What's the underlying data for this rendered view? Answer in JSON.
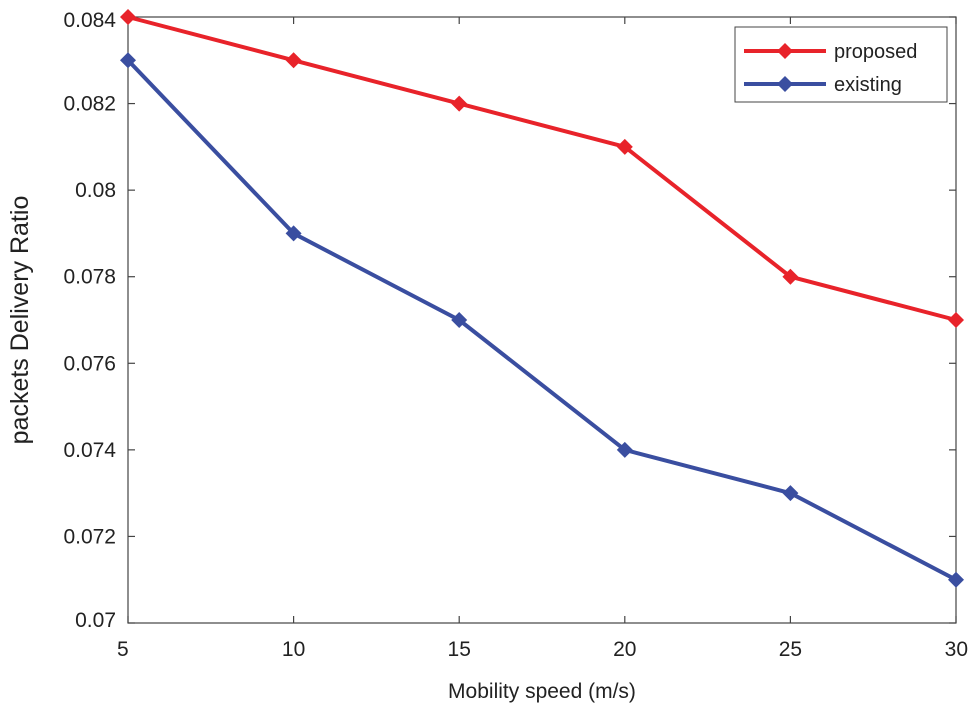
{
  "chart_data": {
    "type": "line",
    "title": "",
    "xlabel": "Mobility speed (m/s)",
    "ylabel": "packets Delivery Ratio",
    "x": [
      5,
      10,
      15,
      20,
      25,
      30
    ],
    "xlim": [
      5,
      30
    ],
    "ylim": [
      0.07,
      0.084
    ],
    "xticks": [
      5,
      10,
      15,
      20,
      25,
      30
    ],
    "xtick_labels": [
      "5",
      "10",
      "15",
      "20",
      "25",
      "30"
    ],
    "yticks": [
      0.07,
      0.072,
      0.074,
      0.076,
      0.078,
      0.08,
      0.082,
      0.084
    ],
    "ytick_labels": [
      "0.07",
      "0.072",
      "0.074",
      "0.076",
      "0.078",
      "0.08",
      "0.082",
      "0.084"
    ],
    "grid": false,
    "legend_position": "top-right",
    "series": [
      {
        "name": "proposed",
        "color": "#e8232a",
        "values": [
          0.084,
          0.083,
          0.082,
          0.081,
          0.078,
          0.077
        ]
      },
      {
        "name": "existing",
        "color": "#3a4ea0",
        "values": [
          0.083,
          0.079,
          0.077,
          0.074,
          0.073,
          0.071
        ]
      }
    ]
  }
}
